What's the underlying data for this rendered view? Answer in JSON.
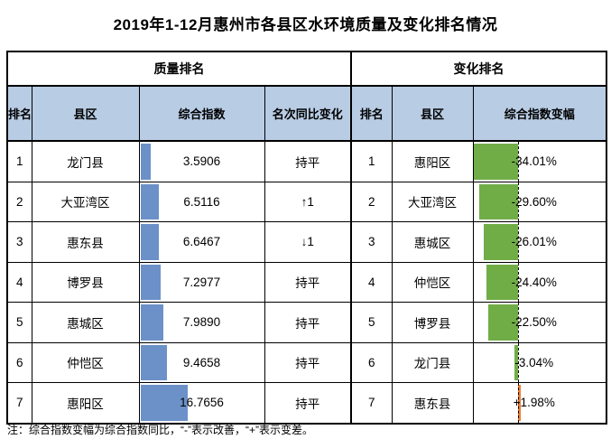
{
  "title": "2019年1-12月惠州市各县区水环境质量及变化排名情况",
  "footnote": "注：综合指数变幅为综合指数同比，“-”表示改善，“+”表示变差。",
  "colors": {
    "header_bg": "#B8CCE4",
    "quality_bar": "#6C91C8",
    "improve_bar": "#71AD47",
    "worsen_bar": "#ED7D31"
  },
  "table": {
    "group_headers": [
      "质量排名",
      "变化排名"
    ],
    "quality": {
      "columns": [
        "排名",
        "县区",
        "综合指数",
        "名次同比变化"
      ],
      "bar_scale_max": 44,
      "rows": [
        {
          "rank": "1",
          "district": "龙门县",
          "index": 3.5906,
          "index_text": "3.5906",
          "change": "持平"
        },
        {
          "rank": "2",
          "district": "大亚湾区",
          "index": 6.5116,
          "index_text": "6.5116",
          "change": "↑1"
        },
        {
          "rank": "3",
          "district": "惠东县",
          "index": 6.6467,
          "index_text": "6.6467",
          "change": "↓1"
        },
        {
          "rank": "4",
          "district": "博罗县",
          "index": 7.2977,
          "index_text": "7.2977",
          "change": "持平"
        },
        {
          "rank": "5",
          "district": "惠城区",
          "index": 7.989,
          "index_text": "7.9890",
          "change": "持平"
        },
        {
          "rank": "6",
          "district": "仲恺区",
          "index": 9.4658,
          "index_text": "9.4658",
          "change": "持平"
        },
        {
          "rank": "7",
          "district": "惠阳区",
          "index": 16.7656,
          "index_text": "16.7656",
          "change": "持平"
        }
      ]
    },
    "change": {
      "columns": [
        "排名",
        "县区",
        "综合指数变幅"
      ],
      "axis_pct": 34,
      "rows": [
        {
          "rank": "1",
          "district": "惠阳区",
          "value": -34.01,
          "value_text": "-34.01%"
        },
        {
          "rank": "2",
          "district": "大亚湾区",
          "value": -29.6,
          "value_text": "-29.60%"
        },
        {
          "rank": "3",
          "district": "惠城区",
          "value": -26.01,
          "value_text": "-26.01%"
        },
        {
          "rank": "4",
          "district": "仲恺区",
          "value": -24.4,
          "value_text": "-24.40%"
        },
        {
          "rank": "5",
          "district": "博罗县",
          "value": -22.5,
          "value_text": "-22.50%"
        },
        {
          "rank": "6",
          "district": "龙门县",
          "value": -3.04,
          "value_text": "-3.04%"
        },
        {
          "rank": "7",
          "district": "惠东县",
          "value": 1.98,
          "value_text": "+1.98%"
        }
      ]
    }
  },
  "chart_data": {
    "type": "table",
    "title": "2019年1-12月惠州市各县区水环境质量及变化排名情况",
    "series": [
      {
        "name": "综合指数",
        "categories": [
          "龙门县",
          "大亚湾区",
          "惠东县",
          "博罗县",
          "惠城区",
          "仲恺区",
          "惠阳区"
        ],
        "values": [
          3.5906,
          6.5116,
          6.6467,
          7.2977,
          7.989,
          9.4658,
          16.7656
        ]
      },
      {
        "name": "综合指数变幅(%)",
        "categories": [
          "惠阳区",
          "大亚湾区",
          "惠城区",
          "仲恺区",
          "博罗县",
          "龙门县",
          "惠东县"
        ],
        "values": [
          -34.01,
          -29.6,
          -26.01,
          -24.4,
          -22.5,
          -3.04,
          1.98
        ]
      }
    ]
  }
}
